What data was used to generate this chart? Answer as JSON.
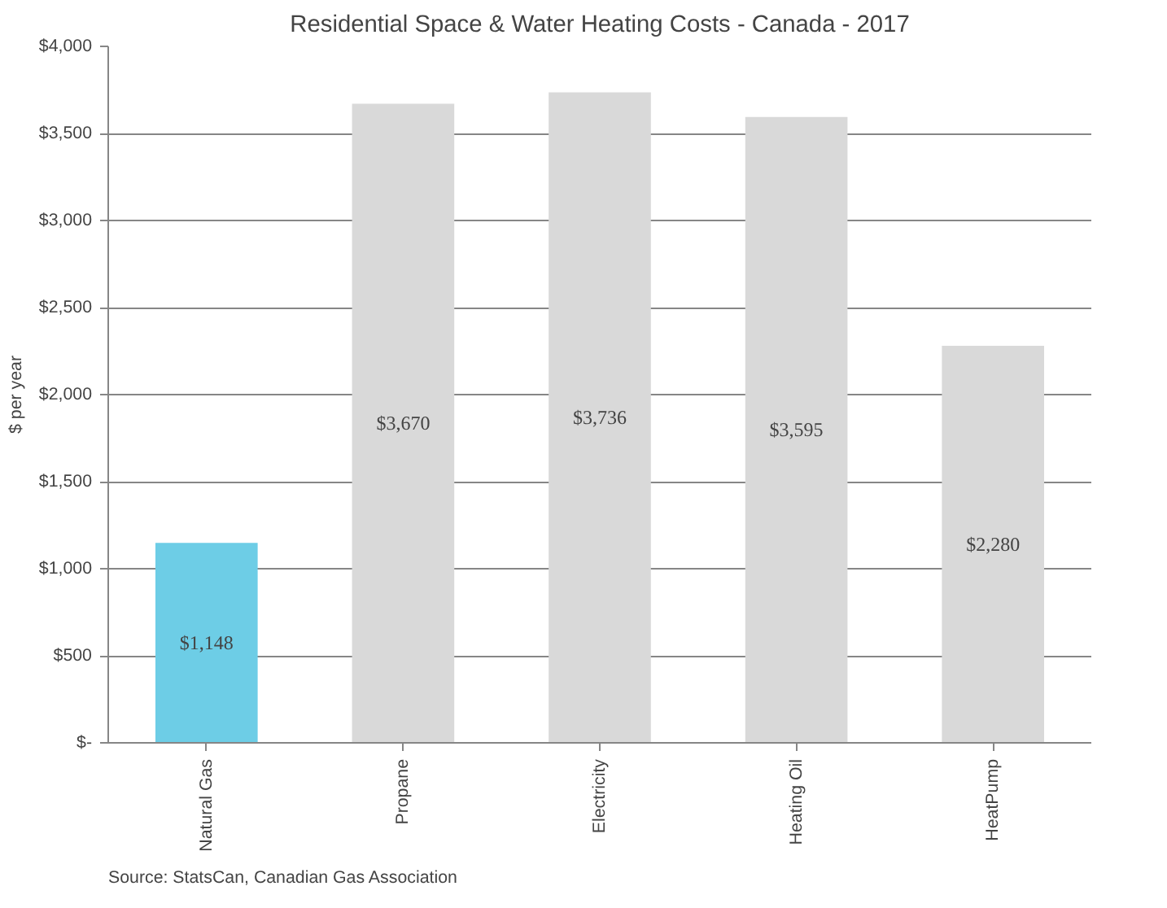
{
  "chart_data": {
    "type": "bar",
    "title": "Residential Space & Water Heating Costs - Canada - 2017",
    "ylabel": "$ per year",
    "categories": [
      "Natural Gas",
      "Propane",
      "Electricity",
      "Heating Oil",
      "HeatPump"
    ],
    "values": [
      1148,
      3670,
      3736,
      3595,
      2280
    ],
    "colors": [
      "#6dcde6",
      "#d9d9d9",
      "#d9d9d9",
      "#d9d9d9",
      "#d9d9d9"
    ],
    "value_labels": [
      "$1,148",
      "$3,670",
      "$3,736",
      "$3,595",
      "$2,280"
    ],
    "ylim": [
      0,
      4000
    ],
    "yticks": [
      {
        "value": 0,
        "label": "$-"
      },
      {
        "value": 500,
        "label": "$500"
      },
      {
        "value": 1000,
        "label": "$1,000"
      },
      {
        "value": 1500,
        "label": "$1,500"
      },
      {
        "value": 2000,
        "label": "$2,000"
      },
      {
        "value": 2500,
        "label": "$2,500"
      },
      {
        "value": 3000,
        "label": "$3,000"
      },
      {
        "value": 3500,
        "label": "$3,500"
      },
      {
        "value": 4000,
        "label": "$4,000"
      }
    ],
    "grid": "y",
    "annotations": [
      "Source: StatsCan, Canadian Gas Association"
    ]
  }
}
